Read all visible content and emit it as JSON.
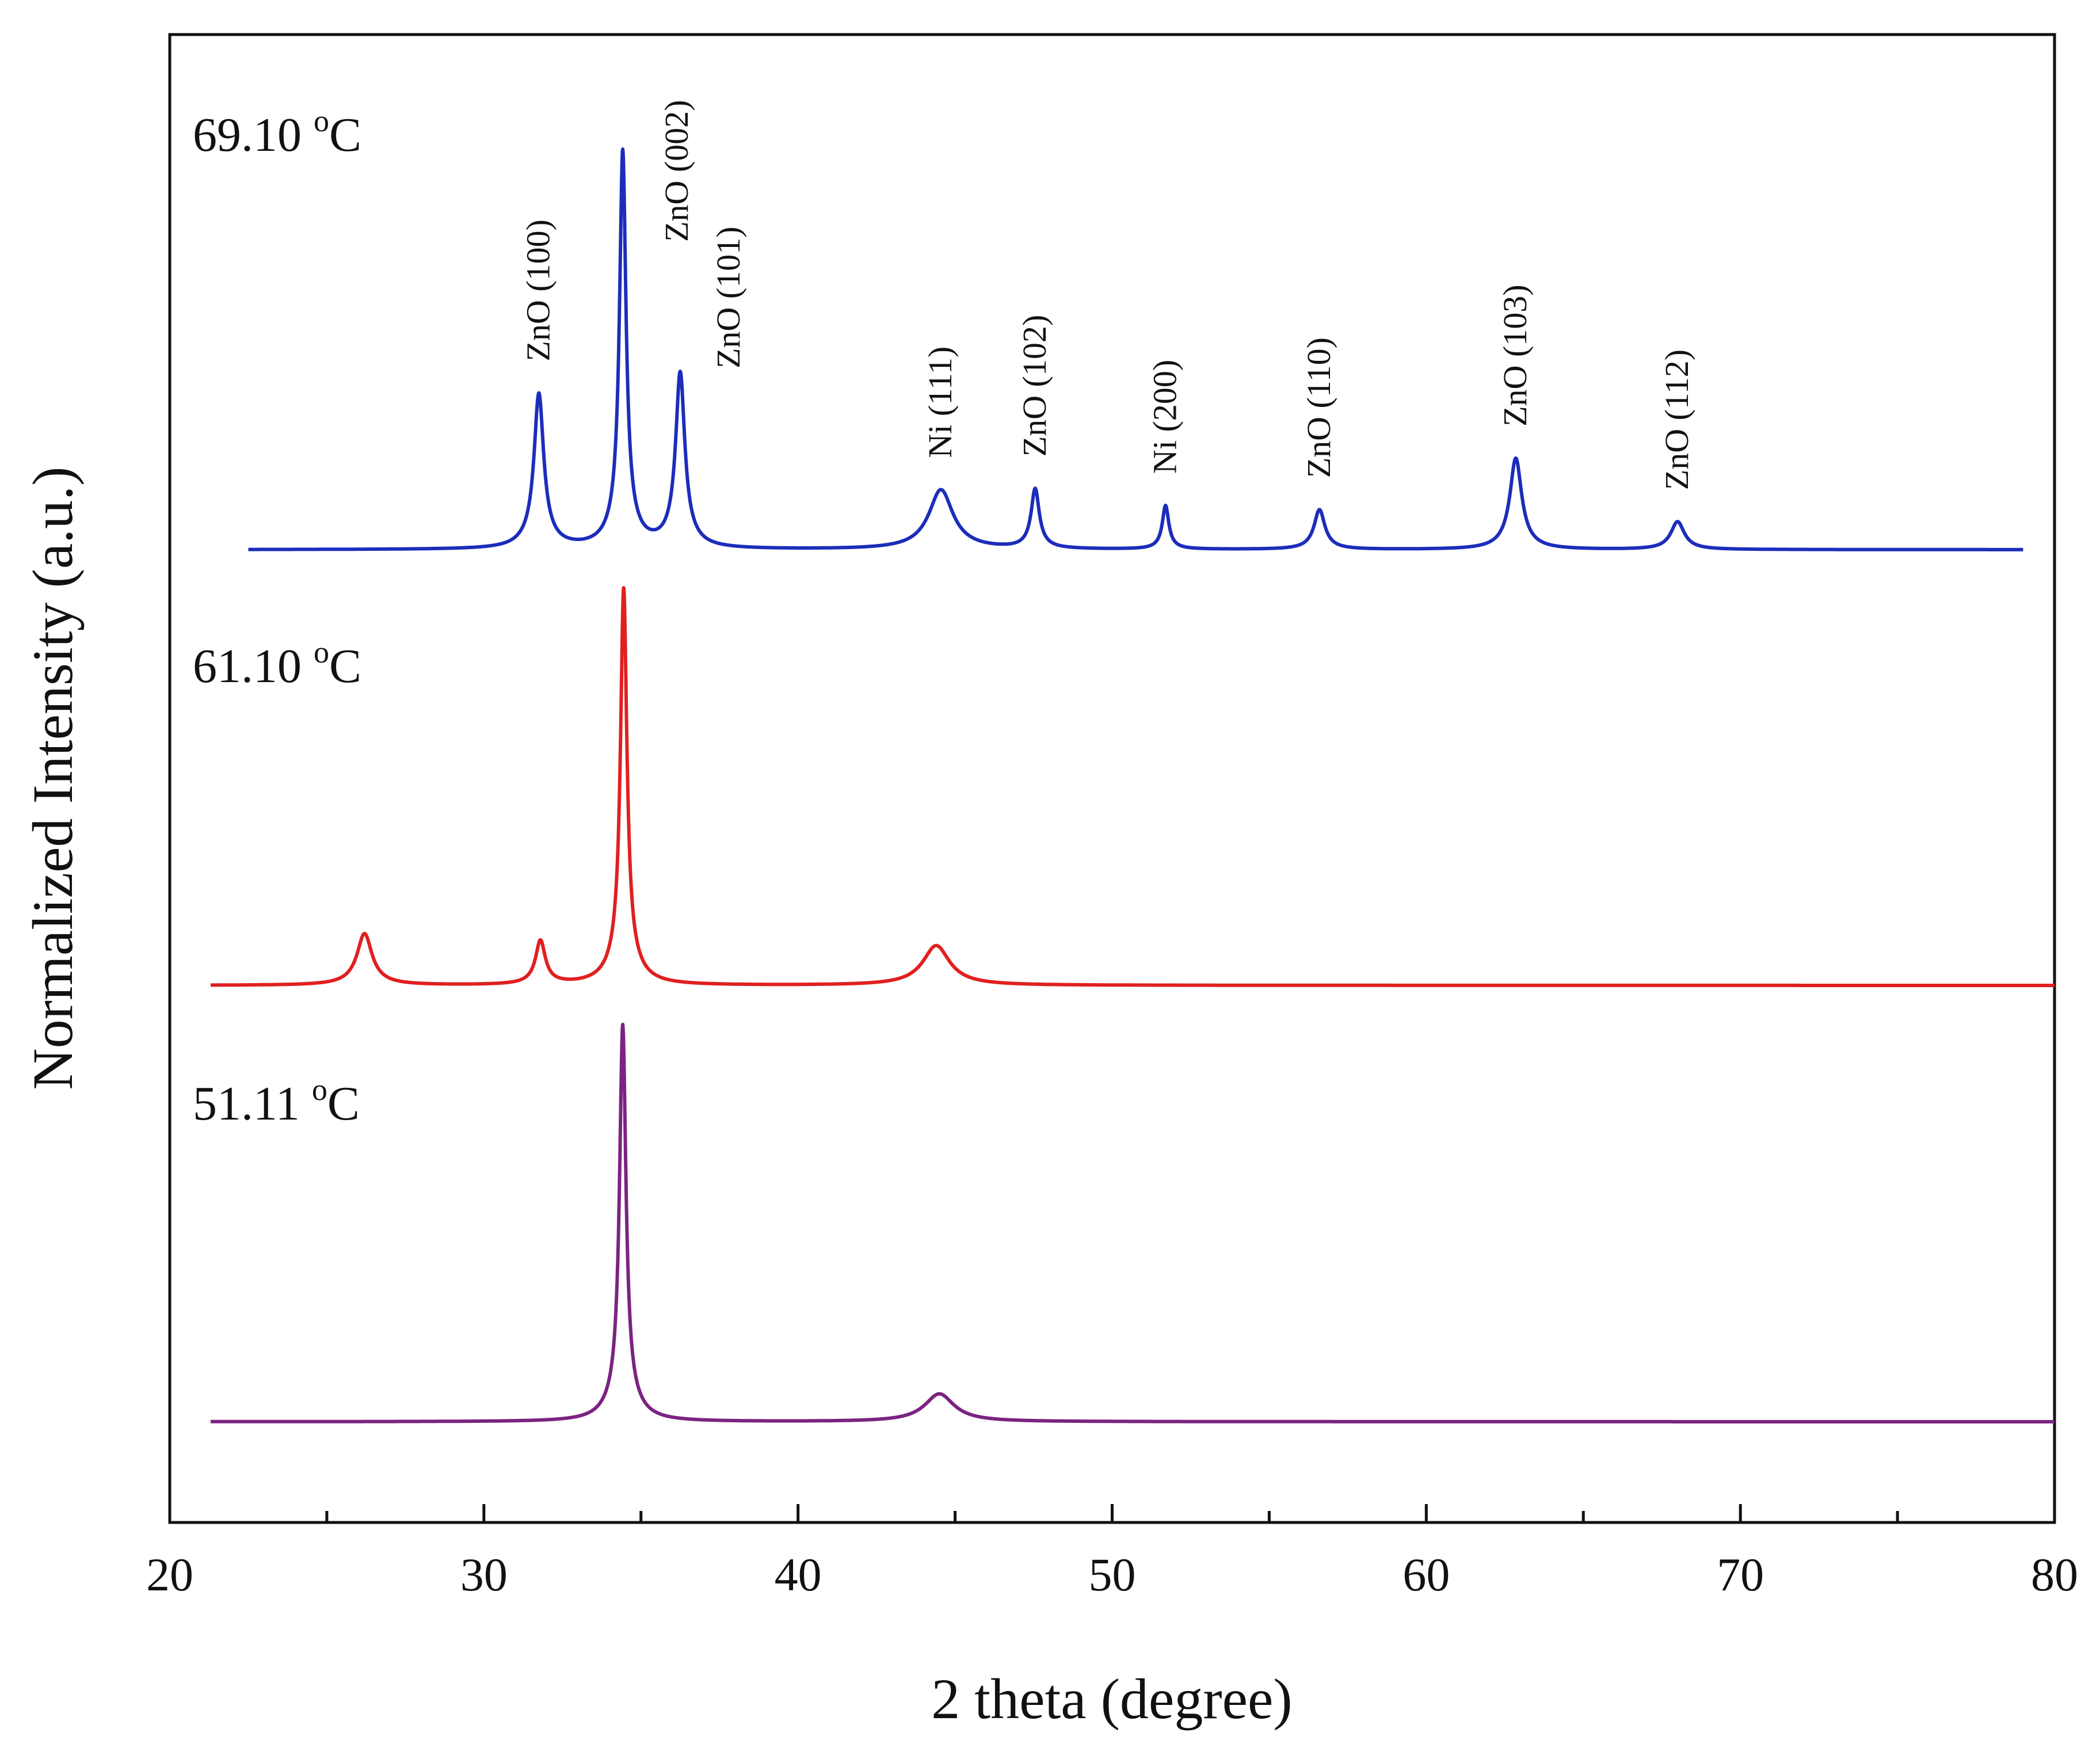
{
  "chart_data": {
    "type": "line",
    "title": "",
    "xlabel": "2 theta (degree)",
    "ylabel": "Normalized Intensity (a.u.)",
    "xlim": [
      20,
      80
    ],
    "x_ticks": [
      20,
      30,
      40,
      50,
      60,
      70,
      80
    ],
    "grid": false,
    "series": [
      {
        "name": "51.11",
        "name_unit": "C",
        "name_degree": "o",
        "color": "#7B2382",
        "x_range": [
          21.3,
          80
        ],
        "peaks": [
          {
            "x": 34.42,
            "height": 1.0,
            "width": 0.12,
            "broad": 0.45
          },
          {
            "x": 44.5,
            "height": 0.07,
            "width": 0.55,
            "broad": 1.0
          }
        ]
      },
      {
        "name": "61.10",
        "name_unit": "C",
        "name_degree": "o",
        "color": "#E02020",
        "x_range": [
          21.3,
          80
        ],
        "peaks": [
          {
            "x": 26.2,
            "height": 0.13,
            "width": 0.28,
            "broad": 0.7
          },
          {
            "x": 31.8,
            "height": 0.11,
            "width": 0.18,
            "broad": 0.5
          },
          {
            "x": 34.45,
            "height": 1.0,
            "width": 0.12,
            "broad": 0.45
          },
          {
            "x": 44.4,
            "height": 0.1,
            "width": 0.5,
            "broad": 1.0
          }
        ]
      },
      {
        "name": "69.10",
        "name_unit": "C",
        "name_degree": "o",
        "color": "#1C2DBB",
        "x_range": [
          22.5,
          79.0
        ],
        "peaks": [
          {
            "x": 31.75,
            "height": 0.39,
            "width": 0.18,
            "broad": 0.5
          },
          {
            "x": 34.42,
            "height": 1.0,
            "width": 0.12,
            "broad": 0.4
          },
          {
            "x": 36.25,
            "height": 0.44,
            "width": 0.17,
            "broad": 0.45
          },
          {
            "x": 44.55,
            "height": 0.15,
            "width": 0.45,
            "broad": 0.9
          },
          {
            "x": 47.55,
            "height": 0.15,
            "width": 0.15,
            "broad": 0.4
          },
          {
            "x": 51.7,
            "height": 0.11,
            "width": 0.12,
            "broad": 0.35
          },
          {
            "x": 56.6,
            "height": 0.1,
            "width": 0.2,
            "broad": 0.5
          },
          {
            "x": 62.85,
            "height": 0.23,
            "width": 0.22,
            "broad": 0.55
          },
          {
            "x": 68.0,
            "height": 0.07,
            "width": 0.25,
            "broad": 0.55
          }
        ],
        "annotations": [
          {
            "text": "ZnO (100)",
            "x": 31.75
          },
          {
            "text": "ZnO (002)",
            "x": 34.42
          },
          {
            "text": "ZnO (101)",
            "x": 36.25
          },
          {
            "text": "Ni (111)",
            "x": 44.55
          },
          {
            "text": "ZnO (102)",
            "x": 47.55
          },
          {
            "text": "Ni (200)",
            "x": 51.7
          },
          {
            "text": "ZnO (110)",
            "x": 56.6
          },
          {
            "text": "ZnO (103)",
            "x": 62.85
          },
          {
            "text": "ZnO (112)",
            "x": 68.0
          }
        ]
      }
    ]
  }
}
